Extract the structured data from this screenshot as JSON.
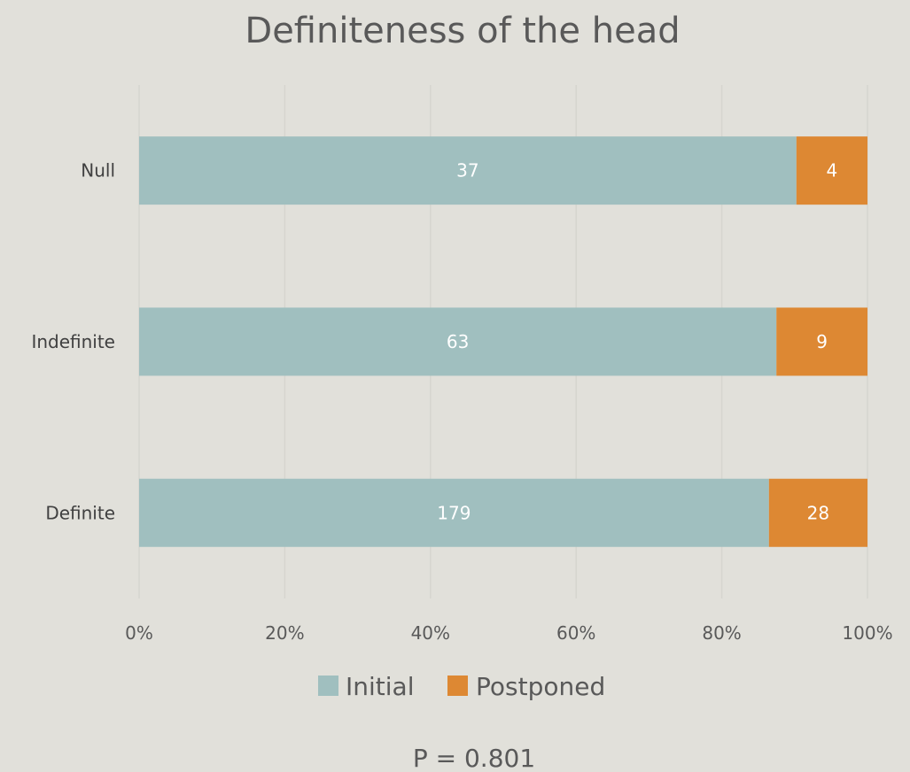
{
  "chart_data": {
    "type": "bar",
    "orientation": "horizontal",
    "stacked": "percent",
    "title": "Definiteness of the head",
    "categories": [
      "Null",
      "Indefinite",
      "Definite"
    ],
    "series": [
      {
        "name": "Initial",
        "values": [
          37,
          63,
          179
        ],
        "color": "#a0bfbf"
      },
      {
        "name": "Postponed",
        "values": [
          4,
          9,
          28
        ],
        "color": "#dd8833"
      }
    ],
    "xticks": [
      "0%",
      "20%",
      "40%",
      "60%",
      "80%",
      "100%"
    ],
    "xlim": [
      0,
      100
    ],
    "grid": true,
    "legend": "bottom",
    "background": "#e1e0da",
    "note": "P = 0.801"
  }
}
